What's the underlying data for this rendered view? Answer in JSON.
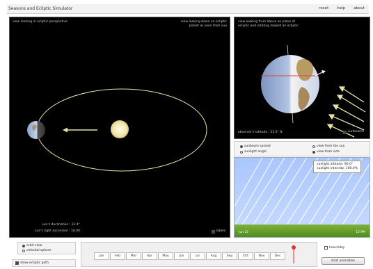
{
  "app": {
    "title": "Seasons and Ecliptic Simulator"
  },
  "menu": {
    "items": [
      "reset",
      "help",
      "about"
    ]
  },
  "orbit_view": {
    "top_left_label": "view looking in ecliptic perspective",
    "top_right_label_1": "view looking down on ecliptic",
    "top_right_label_2": "planet as seen from sun",
    "declination_label": "sun's declination :  23.4°",
    "angle_label": "sun's right ascension :  18.00",
    "zoom_label": "labels"
  },
  "earth_view": {
    "top_label_1": "view looking from above on plane of",
    "top_label_2": "ecliptic and rotating toward an ecliptic",
    "latitude_label": "observer's latitude :  23.5° N",
    "sunbeams_label": "sunbeams"
  },
  "view_options": {
    "left": [
      "sunbeam spread",
      "sunlight angle"
    ],
    "right": [
      "view from the sun",
      "view from side"
    ]
  },
  "sunlight": {
    "info_line_1": "sunlight altitude: 90.0°",
    "info_line_2": "sunlight intensity: 100.0%",
    "left_label": "Jun 21",
    "right_label": "12 PM"
  },
  "months": [
    "Jan",
    "Feb",
    "Mar",
    "Apr",
    "May",
    "Jun",
    "Jul",
    "Aug",
    "Sep",
    "Oct",
    "Nov",
    "Dec"
  ],
  "left_controls": {
    "radio_1": "orbit view",
    "radio_2": "celestial sphere",
    "show_checkbox": "show ecliptic path"
  },
  "right_controls": {
    "checkbox_label": "hours/day",
    "button_label": "start animation"
  },
  "colors": {
    "sun": "#f3e7b0",
    "orbit": "#e6e1a8",
    "ground": "#6aa32d"
  }
}
